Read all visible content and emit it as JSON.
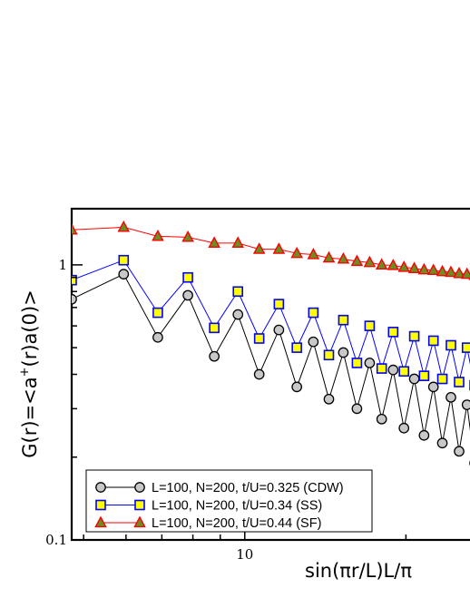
{
  "chart_data": {
    "type": "line",
    "title": "",
    "xlabel": "sin(πr/L)L/π",
    "ylabel_main": "G(r)=<a",
    "ylabel_sup": "+",
    "ylabel_tail": "(r)a(0)>",
    "x_scale": "log",
    "y_scale": "log",
    "xlim": [
      4.75,
      27.5
    ],
    "ylim": [
      0.1,
      1.6
    ],
    "x_ticks": [
      {
        "value": 10,
        "label": "10"
      }
    ],
    "y_ticks": [
      {
        "value": 0.1,
        "label": "0.1"
      },
      {
        "value": 1,
        "label": "1"
      }
    ],
    "grid": false,
    "legend_position": "bottom-left",
    "series": [
      {
        "name": "L=100, N=200, t/U=0.325 (CDW)",
        "color": "#000000",
        "marker": "circle",
        "marker_fill": "#c8c8c8",
        "x": [
          4.75,
          5.94,
          6.88,
          7.83,
          8.77,
          9.71,
          10.64,
          11.58,
          12.51,
          13.43,
          14.36,
          15.28,
          16.2,
          17.11,
          18.02,
          18.93,
          19.83,
          20.73,
          21.62,
          22.51,
          23.39,
          24.27,
          25.14,
          26.01,
          26.87,
          27.5,
          27.5
        ],
        "y": [
          0.75,
          0.925,
          0.545,
          0.775,
          0.465,
          0.66,
          0.4,
          0.58,
          0.36,
          0.525,
          0.325,
          0.48,
          0.3,
          0.44,
          0.275,
          0.415,
          0.255,
          0.385,
          0.24,
          0.36,
          0.225,
          0.33,
          0.21,
          0.31,
          0.19,
          0.295,
          0.18
        ]
      },
      {
        "name": "L=100, N=200, t/U=0.34 (SS)",
        "color": "#0000ff",
        "marker": "square",
        "marker_fill": "#ffff00",
        "x": [
          4.75,
          5.94,
          6.88,
          7.83,
          8.77,
          9.71,
          10.64,
          11.58,
          12.51,
          13.43,
          14.36,
          15.28,
          16.2,
          17.11,
          18.02,
          18.93,
          19.83,
          20.73,
          21.62,
          22.51,
          23.39,
          24.27,
          25.14,
          26.01,
          26.87,
          27.5,
          27.5
        ],
        "y": [
          0.88,
          1.04,
          0.67,
          0.9,
          0.59,
          0.8,
          0.54,
          0.72,
          0.5,
          0.67,
          0.47,
          0.63,
          0.44,
          0.6,
          0.42,
          0.57,
          0.41,
          0.55,
          0.395,
          0.53,
          0.385,
          0.51,
          0.375,
          0.5,
          0.365,
          0.49,
          0.36
        ]
      },
      {
        "name": "L=100, N=200, t/U=0.44 (SF)",
        "color": "#ff0000",
        "marker": "triangle",
        "marker_fill": "#6b8e23",
        "x": [
          4.75,
          5.94,
          6.88,
          7.83,
          8.77,
          9.71,
          10.64,
          11.58,
          12.51,
          13.43,
          14.36,
          15.28,
          16.2,
          17.11,
          18.02,
          18.93,
          19.83,
          20.73,
          21.62,
          22.51,
          23.39,
          24.27,
          25.14,
          26.01,
          26.87,
          27.5
        ],
        "y": [
          1.34,
          1.37,
          1.27,
          1.26,
          1.2,
          1.2,
          1.14,
          1.14,
          1.1,
          1.09,
          1.06,
          1.05,
          1.03,
          1.02,
          1.0,
          0.995,
          0.98,
          0.97,
          0.96,
          0.955,
          0.945,
          0.94,
          0.93,
          0.925,
          0.915,
          0.91
        ]
      }
    ]
  }
}
